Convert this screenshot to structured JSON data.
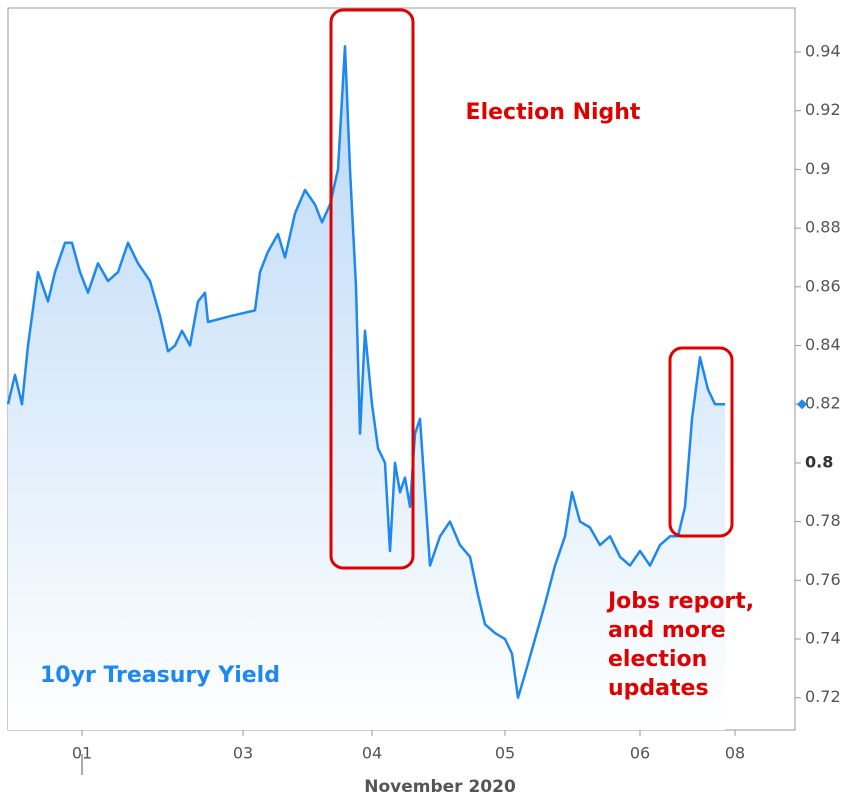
{
  "chart_data": {
    "type": "line",
    "xlabel": "November 2020",
    "x": [
      0,
      7,
      14,
      20,
      30,
      40,
      47,
      57,
      64,
      72,
      80,
      90,
      100,
      110,
      120,
      130,
      142,
      152,
      160,
      167,
      174,
      182,
      190,
      197,
      200,
      222,
      247,
      252,
      260,
      270,
      277,
      287,
      297,
      307,
      314,
      322,
      330,
      337,
      342,
      348,
      352,
      357,
      364,
      370,
      377,
      382,
      387,
      392,
      397,
      402,
      407,
      412,
      417,
      422,
      432,
      442,
      452,
      462,
      470,
      477,
      487,
      497,
      504,
      510,
      517,
      527,
      537,
      547,
      557,
      564,
      572,
      582,
      592,
      602,
      612,
      622,
      632,
      642,
      652,
      662,
      670,
      677,
      684,
      692,
      700,
      707,
      717
    ],
    "series": [
      {
        "name": "10yr Treasury Yield",
        "color": "#1e88f0",
        "values": [
          0.82,
          0.83,
          0.82,
          0.84,
          0.865,
          0.855,
          0.865,
          0.875,
          0.875,
          0.865,
          0.858,
          0.868,
          0.862,
          0.865,
          0.875,
          0.868,
          0.862,
          0.85,
          0.838,
          0.84,
          0.845,
          0.84,
          0.855,
          0.858,
          0.848,
          0.85,
          0.852,
          0.865,
          0.872,
          0.878,
          0.87,
          0.885,
          0.893,
          0.888,
          0.882,
          0.888,
          0.9,
          0.942,
          0.9,
          0.86,
          0.81,
          0.845,
          0.82,
          0.805,
          0.8,
          0.77,
          0.8,
          0.79,
          0.795,
          0.785,
          0.81,
          0.815,
          0.79,
          0.765,
          0.775,
          0.78,
          0.772,
          0.768,
          0.755,
          0.745,
          0.742,
          0.74,
          0.735,
          0.72,
          0.728,
          0.74,
          0.752,
          0.765,
          0.775,
          0.79,
          0.78,
          0.778,
          0.772,
          0.775,
          0.768,
          0.765,
          0.77,
          0.765,
          0.772,
          0.775,
          0.775,
          0.785,
          0.815,
          0.836,
          0.825,
          0.82,
          0.82
        ]
      }
    ],
    "xlim": [
      0,
      787
    ],
    "xticks": [
      {
        "value": 74,
        "label": "01"
      },
      {
        "value": 235,
        "label": "03"
      },
      {
        "value": 364,
        "label": "04"
      },
      {
        "value": 497,
        "label": "05"
      },
      {
        "value": 632,
        "label": "06"
      },
      {
        "value": 727,
        "label": "08"
      }
    ],
    "ylim": [
      0.709,
      0.955
    ],
    "yticks": [
      0.72,
      0.74,
      0.76,
      0.78,
      0.8,
      0.82,
      0.84,
      0.86,
      0.88,
      0.9,
      0.92,
      0.94
    ],
    "annotations": [
      "Election Night",
      [
        "Jobs report,",
        "and more",
        "election",
        "updates"
      ]
    ]
  }
}
